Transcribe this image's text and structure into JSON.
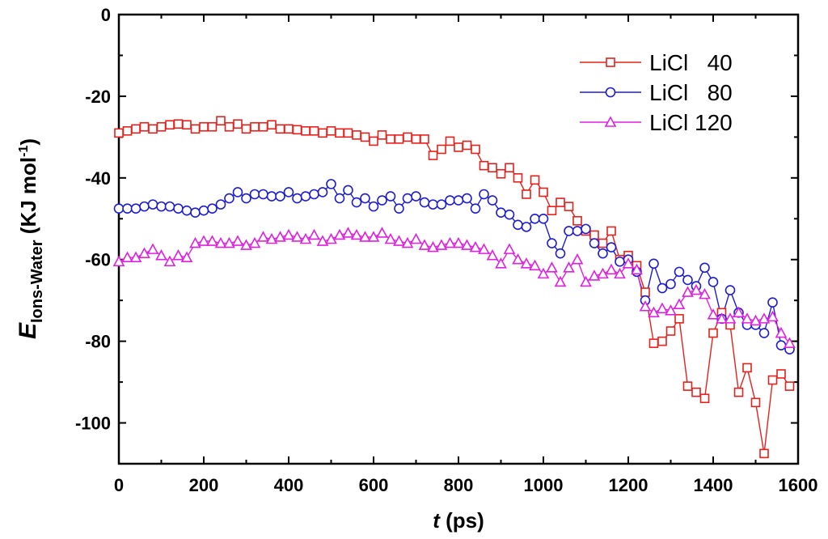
{
  "chart_data": {
    "type": "line",
    "xlabel_var": "t",
    "xlabel_unit": " (ps)",
    "ylabel_var": "E",
    "ylabel_sub": "Ions-Water",
    "ylabel_unit": " (KJ mol",
    "ylabel_sup": "-1",
    "ylabel_close": ")",
    "xlim": [
      0,
      1600
    ],
    "ylim": [
      -110,
      0
    ],
    "xticks": [
      0,
      200,
      400,
      600,
      800,
      1000,
      1200,
      1400,
      1600
    ],
    "yticks": [
      0,
      -20,
      -40,
      -60,
      -80,
      -100
    ],
    "legend_position": "top-right",
    "series": [
      {
        "name": "LiCl   40",
        "color": "#e8201c",
        "marker": "square",
        "x": [
          0,
          20,
          40,
          60,
          80,
          100,
          120,
          140,
          160,
          180,
          200,
          220,
          240,
          260,
          280,
          300,
          320,
          340,
          360,
          380,
          400,
          420,
          440,
          460,
          480,
          500,
          520,
          540,
          560,
          580,
          600,
          620,
          640,
          660,
          680,
          700,
          720,
          740,
          760,
          780,
          800,
          820,
          840,
          860,
          880,
          900,
          920,
          940,
          960,
          980,
          1000,
          1020,
          1040,
          1060,
          1080,
          1100,
          1120,
          1140,
          1160,
          1180,
          1200,
          1220,
          1240,
          1260,
          1280,
          1300,
          1320,
          1340,
          1360,
          1380,
          1400,
          1420,
          1440,
          1460,
          1480,
          1500,
          1520,
          1540,
          1560,
          1580
        ],
        "values": [
          -29,
          -28.5,
          -28,
          -27.5,
          -28,
          -27.5,
          -27,
          -26.8,
          -27,
          -28,
          -27.5,
          -27.5,
          -26,
          -27.5,
          -26.8,
          -28,
          -27.5,
          -27.5,
          -27,
          -28,
          -28,
          -28.2,
          -28.5,
          -28.5,
          -29,
          -28.5,
          -29,
          -29,
          -29.5,
          -30,
          -31,
          -29.5,
          -30.5,
          -30.5,
          -30,
          -30.5,
          -30.5,
          -34.5,
          -33,
          -31,
          -32.5,
          -32,
          -33,
          -37,
          -37.5,
          -39,
          -37.5,
          -40,
          -44,
          -40.5,
          -43.5,
          -48,
          -46,
          -47,
          -50.5,
          -53,
          -54,
          -56,
          -53,
          -60,
          -59,
          -61.5,
          -68,
          -80.5,
          -80,
          -77.5,
          -74.5,
          -91,
          -92.5,
          -94,
          -78,
          -73,
          -76,
          -92.5,
          -86.5,
          -95,
          -107.5,
          -89.5,
          -88,
          -91
        ]
      },
      {
        "name": "LiCl   80",
        "color": "#1c1cd6",
        "marker": "circle",
        "x": [
          0,
          20,
          40,
          60,
          80,
          100,
          120,
          140,
          160,
          180,
          200,
          220,
          240,
          260,
          280,
          300,
          320,
          340,
          360,
          380,
          400,
          420,
          440,
          460,
          480,
          500,
          520,
          540,
          560,
          580,
          600,
          620,
          640,
          660,
          680,
          700,
          720,
          740,
          760,
          780,
          800,
          820,
          840,
          860,
          880,
          900,
          920,
          940,
          960,
          980,
          1000,
          1020,
          1040,
          1060,
          1080,
          1100,
          1120,
          1140,
          1160,
          1180,
          1200,
          1220,
          1240,
          1260,
          1280,
          1300,
          1320,
          1340,
          1360,
          1380,
          1400,
          1420,
          1440,
          1460,
          1480,
          1500,
          1520,
          1540,
          1560,
          1580
        ],
        "values": [
          -47.5,
          -47.5,
          -47.5,
          -47,
          -46.5,
          -47,
          -47,
          -47.5,
          -48,
          -48.5,
          -48,
          -47.5,
          -46.5,
          -45,
          -43.5,
          -45,
          -44,
          -44,
          -44.5,
          -44.5,
          -43.5,
          -45,
          -44.5,
          -44,
          -43.5,
          -41.5,
          -45,
          -43,
          -46,
          -45,
          -47,
          -45.5,
          -44.5,
          -47.5,
          -45,
          -44.5,
          -46,
          -46.5,
          -46.5,
          -45.5,
          -45.5,
          -45,
          -47.5,
          -44,
          -45.5,
          -48.5,
          -49,
          -51.5,
          -52,
          -50,
          -50,
          -56,
          -58.5,
          -53,
          -53,
          -52.5,
          -56,
          -58.5,
          -57,
          -60.5,
          -60,
          -63,
          -70,
          -61,
          -67,
          -66,
          -63,
          -65,
          -66.5,
          -62,
          -65.5,
          -74.5,
          -67.5,
          -73,
          -76,
          -76,
          -78,
          -70.5,
          -81,
          -82
        ]
      },
      {
        "name": "LiCl 120",
        "color": "#e020e0",
        "marker": "triangle",
        "x": [
          0,
          20,
          40,
          60,
          80,
          100,
          120,
          140,
          160,
          180,
          200,
          220,
          240,
          260,
          280,
          300,
          320,
          340,
          360,
          380,
          400,
          420,
          440,
          460,
          480,
          500,
          520,
          540,
          560,
          580,
          600,
          620,
          640,
          660,
          680,
          700,
          720,
          740,
          760,
          780,
          800,
          820,
          840,
          860,
          880,
          900,
          920,
          940,
          960,
          980,
          1000,
          1020,
          1040,
          1060,
          1080,
          1100,
          1120,
          1140,
          1160,
          1180,
          1200,
          1220,
          1240,
          1260,
          1280,
          1300,
          1320,
          1340,
          1360,
          1380,
          1400,
          1420,
          1440,
          1460,
          1480,
          1500,
          1520,
          1540,
          1560,
          1580
        ],
        "values": [
          -60.5,
          -59.5,
          -59.5,
          -58.5,
          -57.5,
          -59,
          -60.5,
          -59,
          -59.5,
          -56,
          -55.5,
          -55.5,
          -56,
          -56,
          -55.5,
          -56.5,
          -56,
          -54.5,
          -55,
          -54.5,
          -54,
          -54.5,
          -55,
          -54,
          -55.5,
          -55,
          -54,
          -53.5,
          -54,
          -54.5,
          -54.5,
          -53.5,
          -55,
          -55.5,
          -56,
          -55,
          -56.5,
          -57,
          -56.5,
          -56,
          -56,
          -56.5,
          -57,
          -57.5,
          -59,
          -61,
          -57.5,
          -60,
          -61,
          -61.5,
          -63.5,
          -62,
          -65.5,
          -62,
          -60,
          -65.5,
          -64,
          -63.5,
          -62.5,
          -63.5,
          -61,
          -62.5,
          -71.5,
          -73,
          -72,
          -72.5,
          -71,
          -68,
          -67.5,
          -68.5,
          -73.5,
          -74.5,
          -74.5,
          -73,
          -74.5,
          -75,
          -74.5,
          -74,
          -78,
          -80.5
        ]
      }
    ]
  }
}
